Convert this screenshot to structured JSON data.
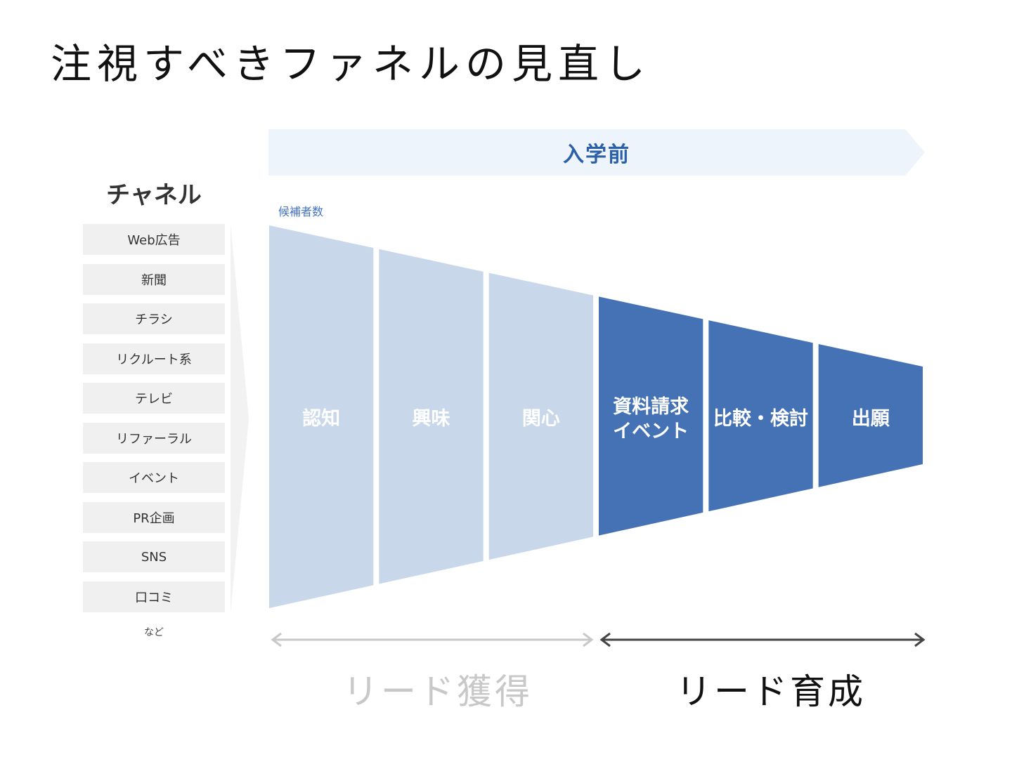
{
  "title": "注視すべきファネルの見直し",
  "phase": {
    "label": "入学前",
    "color": "#edf4fc",
    "text_color": "#2b5fa6"
  },
  "channels": {
    "heading": "チャネル",
    "items": [
      "Web広告",
      "新聞",
      "チラシ",
      "リクルート系",
      "テレビ",
      "リファーラル",
      "イベント",
      "PR企画",
      "SNS",
      "口コミ"
    ],
    "more": "など"
  },
  "funnel": {
    "axis_label": "候補者数",
    "colors": {
      "light": "#c8d7ea",
      "dark": "#4472b4"
    },
    "stages": [
      {
        "label": "認知",
        "tone": "light"
      },
      {
        "label": "興味",
        "tone": "light"
      },
      {
        "label": "関心",
        "tone": "light"
      },
      {
        "label": "資料請求\nイベント",
        "tone": "dark"
      },
      {
        "label": "比較・検討",
        "tone": "dark"
      },
      {
        "label": "出願",
        "tone": "dark"
      }
    ]
  },
  "ranges": {
    "acquisition": {
      "label": "リード獲得",
      "color": "#c8c8c8"
    },
    "nurturing": {
      "label": "リード育成",
      "color": "#333333"
    }
  }
}
